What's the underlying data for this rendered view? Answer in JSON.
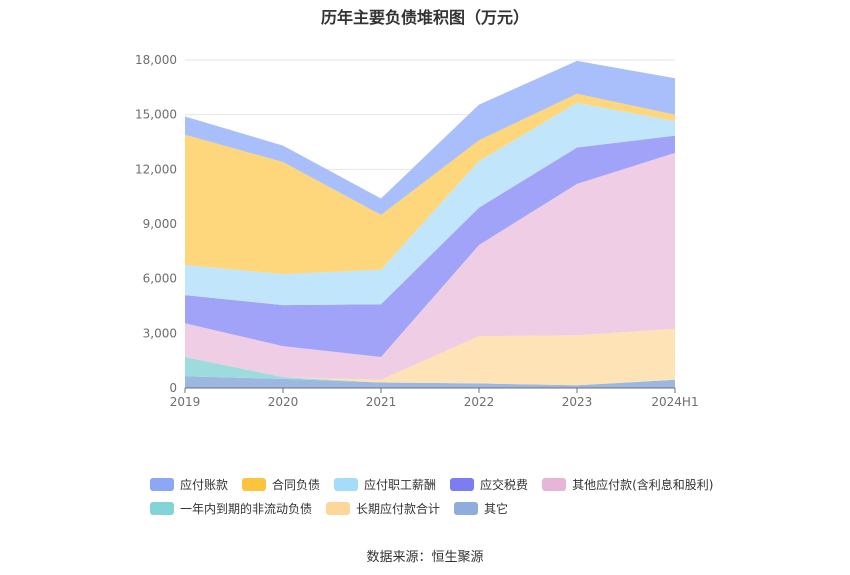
{
  "chart_data": {
    "type": "area",
    "stacked": true,
    "title": "历年主要负债堆积图（万元）",
    "categories": [
      "2019",
      "2020",
      "2021",
      "2022",
      "2023",
      "2024H1"
    ],
    "ylim": [
      0,
      18000
    ],
    "yticks": [
      "0",
      "3,000",
      "6,000",
      "9,000",
      "12,000",
      "15,000",
      "18,000"
    ],
    "ytick_values": [
      0,
      3000,
      6000,
      9000,
      12000,
      15000,
      18000
    ],
    "grid": true,
    "legend_position": "bottom",
    "series": [
      {
        "name": "其它",
        "color": "#9cb8e0",
        "values": [
          650,
          500,
          300,
          250,
          150,
          450
        ]
      },
      {
        "name": "一年内到期的非流动负债",
        "color": "#9ddcdc",
        "values": [
          1050,
          100,
          0,
          0,
          0,
          0
        ]
      },
      {
        "name": "长期应付款合计",
        "color": "#fde3b6",
        "values": [
          0,
          0,
          150,
          2600,
          2750,
          2800
        ]
      },
      {
        "name": "其他应付款(含利息和股利)",
        "color": "#efcde5",
        "values": [
          1850,
          1700,
          1250,
          5000,
          8300,
          9650
        ]
      },
      {
        "name": "应交税费",
        "color": "#a1a3f8",
        "values": [
          1550,
          2250,
          2900,
          2050,
          2000,
          950
        ]
      },
      {
        "name": "应付职工薪酬",
        "color": "#c1e6fb",
        "values": [
          1650,
          1700,
          1900,
          2550,
          2450,
          800
        ]
      },
      {
        "name": "合同负债",
        "color": "#fed67b",
        "values": [
          7150,
          6150,
          3000,
          1150,
          500,
          350
        ]
      },
      {
        "name": "应付账款",
        "color": "#a8bffb",
        "values": [
          1000,
          900,
          900,
          1950,
          1800,
          2000
        ]
      }
    ]
  },
  "legend": [
    [
      {
        "name": "应付账款",
        "color": "#8ca8f5"
      },
      {
        "name": "合同负债",
        "color": "#fcc33e"
      },
      {
        "name": "应付职工薪酬",
        "color": "#a5dcf8"
      },
      {
        "name": "应交税费",
        "color": "#7b7df0"
      },
      {
        "name": "其他应付款(含利息和股利)",
        "color": "#e6b5d8"
      }
    ],
    [
      {
        "name": "一年内到期的非流动负债",
        "color": "#83d4d6"
      },
      {
        "name": "长期应付款合计",
        "color": "#fdd79a"
      },
      {
        "name": "其它",
        "color": "#8eacdd"
      }
    ]
  ],
  "source": "数据来源：恒生聚源"
}
